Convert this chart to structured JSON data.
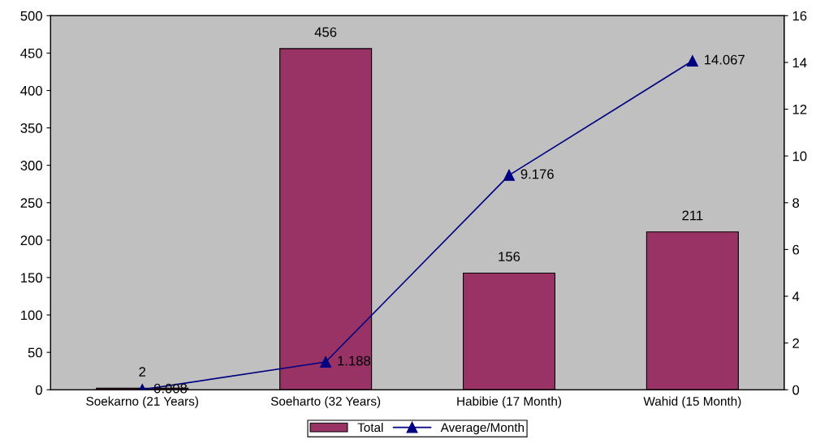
{
  "chart_data": {
    "type": "bar",
    "categories": [
      "Soekarno (21 Years)",
      "Soeharto (32 Years)",
      "Habibie (17 Month)",
      "Wahid (15 Month)"
    ],
    "series": [
      {
        "name": "Total",
        "color": "#993366",
        "values": [
          2,
          456,
          156,
          211
        ]
      },
      {
        "name": "Average/Month",
        "type": "line",
        "axis": "y2",
        "color": "#000080",
        "marker": "triangle",
        "values": [
          0.008,
          1.188,
          9.176,
          14.067
        ]
      }
    ],
    "ylim": [
      0,
      500
    ],
    "yticks": [
      0,
      50,
      100,
      150,
      200,
      250,
      300,
      350,
      400,
      450,
      500
    ],
    "y2lim": [
      0,
      16
    ],
    "y2ticks": [
      0,
      2,
      4,
      6,
      8,
      10,
      12,
      14,
      16
    ],
    "data_labels": true,
    "legend": "bottom",
    "grid": false
  }
}
